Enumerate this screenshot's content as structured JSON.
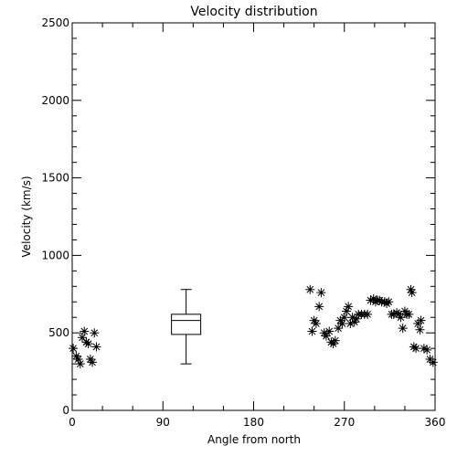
{
  "chart_data": {
    "type": "scatter",
    "title": "Velocity distribution",
    "xlabel": "Angle from north",
    "ylabel": "Velocity (km/s)",
    "xlim": [
      0,
      360
    ],
    "ylim": [
      0,
      2500
    ],
    "xticks": [
      0,
      90,
      180,
      270,
      360
    ],
    "yticks": [
      0,
      500,
      1000,
      1500,
      2000,
      2500
    ],
    "grid": false,
    "marker": "asterisk",
    "color": "#000000",
    "points": [
      [
        1,
        400
      ],
      [
        4,
        350
      ],
      [
        6,
        330
      ],
      [
        8,
        300
      ],
      [
        10,
        470
      ],
      [
        12,
        510
      ],
      [
        14,
        440
      ],
      [
        16,
        430
      ],
      [
        18,
        330
      ],
      [
        20,
        310
      ],
      [
        22,
        500
      ],
      [
        24,
        410
      ],
      [
        236,
        780
      ],
      [
        238,
        510
      ],
      [
        240,
        580
      ],
      [
        242,
        560
      ],
      [
        245,
        670
      ],
      [
        247,
        760
      ],
      [
        250,
        500
      ],
      [
        252,
        480
      ],
      [
        255,
        510
      ],
      [
        257,
        440
      ],
      [
        259,
        430
      ],
      [
        261,
        450
      ],
      [
        264,
        530
      ],
      [
        266,
        580
      ],
      [
        268,
        560
      ],
      [
        270,
        600
      ],
      [
        272,
        640
      ],
      [
        274,
        670
      ],
      [
        276,
        560
      ],
      [
        278,
        600
      ],
      [
        280,
        570
      ],
      [
        282,
        590
      ],
      [
        284,
        620
      ],
      [
        287,
        620
      ],
      [
        290,
        620
      ],
      [
        293,
        620
      ],
      [
        296,
        710
      ],
      [
        299,
        720
      ],
      [
        301,
        700
      ],
      [
        303,
        710
      ],
      [
        305,
        710
      ],
      [
        307,
        700
      ],
      [
        310,
        700
      ],
      [
        312,
        690
      ],
      [
        314,
        700
      ],
      [
        317,
        620
      ],
      [
        319,
        620
      ],
      [
        322,
        630
      ],
      [
        324,
        620
      ],
      [
        326,
        600
      ],
      [
        328,
        530
      ],
      [
        330,
        640
      ],
      [
        332,
        620
      ],
      [
        334,
        620
      ],
      [
        336,
        780
      ],
      [
        337,
        760
      ],
      [
        339,
        410
      ],
      [
        341,
        400
      ],
      [
        343,
        560
      ],
      [
        345,
        520
      ],
      [
        346,
        580
      ],
      [
        349,
        400
      ],
      [
        352,
        390
      ],
      [
        355,
        330
      ],
      [
        358,
        310
      ]
    ],
    "boxplot": {
      "x": 113,
      "min": 300,
      "q1": 490,
      "median": 580,
      "q3": 620,
      "max": 780
    }
  }
}
